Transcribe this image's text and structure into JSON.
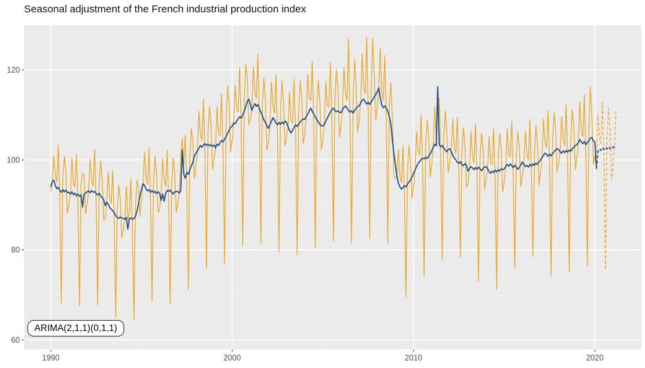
{
  "title": "Seasonal adjustment of the French industrial production index",
  "annotation": "ARIMA(2,1,1)(0,1,1)",
  "colors": {
    "raw_series": "#E9A422",
    "adjusted_series": "#1F4E89",
    "panel_background": "#EBEBEB",
    "grid_major": "#FFFFFF",
    "grid_minor": "#F5F5F5",
    "tick_label": "#4D4D4D",
    "tick_mark": "#333333",
    "title_text": "#111111"
  },
  "chart_data": {
    "type": "line",
    "title": "Seasonal adjustment of the French industrial production index",
    "xlabel": "",
    "ylabel": "",
    "grid": true,
    "legend_position": "none",
    "x_axis": {
      "ticks": [
        1990,
        2000,
        2010,
        2020
      ],
      "minor_ticks": [
        1995,
        2005,
        2015
      ],
      "range": [
        1988.5,
        2022.6
      ]
    },
    "y_axis": {
      "ticks": [
        60,
        80,
        100,
        120
      ],
      "minor_ticks": [
        70,
        90,
        110
      ],
      "range": [
        57.8,
        129.9
      ]
    },
    "frequency": 12,
    "series": [
      {
        "name": "raw_index",
        "style": "solid",
        "color": "#E9A422",
        "start": {
          "year": 1990,
          "month": 1
        },
        "values": [
          92.9,
          95.2,
          100.9,
          96.7,
          95.0,
          103.3,
          91.3,
          68.2,
          95.7,
          100.8,
          97.5,
          88.1,
          90.0,
          92.4,
          100.3,
          94.6,
          94.0,
          101.2,
          90.6,
          67.5,
          94.5,
          97.1,
          96.6,
          88.0,
          90.1,
          93.1,
          100.1,
          95.5,
          94.2,
          102.3,
          90.7,
          67.8,
          94.9,
          99.8,
          95.7,
          86.6,
          87.1,
          90.6,
          97.4,
          91.6,
          90.3,
          97.6,
          86.5,
          64.9,
          89.4,
          94.4,
          91.2,
          82.7,
          84.4,
          86.8,
          94.2,
          86.7,
          88.2,
          95.8,
          85.1,
          64.5,
          89.6,
          95.5,
          93.9,
          87.4,
          90.7,
          94.7,
          101.8,
          95.9,
          94.5,
          102.7,
          91.0,
          68.5,
          95.0,
          100.9,
          96.7,
          88.3,
          89.0,
          92.4,
          100.4,
          95.6,
          94.1,
          102.2,
          90.6,
          68.1,
          94.5,
          100.4,
          97.0,
          88.4,
          90.2,
          92.6,
          100.7,
          104.8,
          98.4,
          105.5,
          95.3,
          71.1,
          100.3,
          107.0,
          104.0,
          95.8,
          98.5,
          102.0,
          110.8,
          105.8,
          104.3,
          113.6,
          101.5,
          75.9,
          106.1,
          111.9,
          108.1,
          97.9,
          100.2,
          102.7,
          111.8,
          105.8,
          105.4,
          114.7,
          101.9,
          76.9,
          107.8,
          116.5,
          112.5,
          101.8,
          104.3,
          108.2,
          116.6,
          111.3,
          110.7,
          120.6,
          107.1,
          80.9,
          113.6,
          121.4,
          118.1,
          107.8,
          109.0,
          111.0,
          120.7,
          115.3,
          113.6,
          123.5,
          109.2,
          81.3,
          112.5,
          118.2,
          113.2,
          102.2,
          103.8,
          107.8,
          117.3,
          112.1,
          110.4,
          119.0,
          105.6,
          79.6,
          110.6,
          117.6,
          112.9,
          103.2,
          105.1,
          107.4,
          115.0,
          108.7,
          108.2,
          117.9,
          105.6,
          78.9,
          110.7,
          117.6,
          113.7,
          103.6,
          105.7,
          109.6,
          119.0,
          113.7,
          113.2,
          121.9,
          108.0,
          80.5,
          111.7,
          117.6,
          112.8,
          102.2,
          104.3,
          107.9,
          117.3,
          112.0,
          111.7,
          121.7,
          109.0,
          82.0,
          113.8,
          120.1,
          115.9,
          105.1,
          107.2,
          111.1,
          120.6,
          114.8,
          113.2,
          126.9,
          108.4,
          81.5,
          113.2,
          122.4,
          116.5,
          106.2,
          108.6,
          112.6,
          123.5,
          116.3,
          114.6,
          127.3,
          110.5,
          82.5,
          115.7,
          127.0,
          119.1,
          108.8,
          111.7,
          116.0,
          124.9,
          115.0,
          113.3,
          123.2,
          109.3,
          81.4,
          112.3,
          117.2,
          109.2,
          96.4,
          96.0,
          96.5,
          102.4,
          96.4,
          94.9,
          103.2,
          92.4,
          69.5,
          97.0,
          103.2,
          99.8,
          91.4,
          94.1,
          97.8,
          106.4,
          101.7,
          101.1,
          110.1,
          98.4,
          74.0,
          103.1,
          108.8,
          105.3,
          96.2,
          98.9,
          102.8,
          111.8,
          105.7,
          113.0,
          113.7,
          100.8,
          77.8,
          105.2,
          110.9,
          106.4,
          97.2,
          99.4,
          101.8,
          109.1,
          102.9,
          101.5,
          109.5,
          97.2,
          78.4,
          101.5,
          107.1,
          103.7,
          93.9,
          94.6,
          98.0,
          106.4,
          100.7,
          99.3,
          108.1,
          95.9,
          73.0,
          100.5,
          105.9,
          102.5,
          93.5,
          95.5,
          98.0,
          105.2,
          99.4,
          99.0,
          106.9,
          95.7,
          71.2,
          100.2,
          105.8,
          102.4,
          92.9,
          95.1,
          98.5,
          106.9,
          101.1,
          100.6,
          108.6,
          96.3,
          76.0,
          100.9,
          106.2,
          102.7,
          94.0,
          96.5,
          99.0,
          106.4,
          101.3,
          99.9,
          108.9,
          96.6,
          78.5,
          101.3,
          107.7,
          103.4,
          94.4,
          97.0,
          100.5,
          109.1,
          104.0,
          102.7,
          110.9,
          99.3,
          74.2,
          103.9,
          110.5,
          106.8,
          97.4,
          99.2,
          101.8,
          109.6,
          104.6,
          103.1,
          112.3,
          99.7,
          75.1,
          104.4,
          111.1,
          107.4,
          97.9,
          100.1,
          103.8,
          112.9,
          106.6,
          105.2,
          114.5,
          101.3,
          76.3,
          106.9,
          116.3,
          109.7,
          99.0,
          100.9,
          98.3
        ]
      },
      {
        "name": "seasonally_adjusted",
        "style": "solid",
        "color": "#1F4E89",
        "start": {
          "year": 1990,
          "month": 1
        },
        "values": [
          94.0,
          95.2,
          95.5,
          94.3,
          93.6,
          93.9,
          93.2,
          92.8,
          93.4,
          92.9,
          93.3,
          92.7,
          92.8,
          92.4,
          92.9,
          92.3,
          92.6,
          92.0,
          92.4,
          91.9,
          92.2,
          89.5,
          92.4,
          92.6,
          92.9,
          93.1,
          92.7,
          93.2,
          92.8,
          93.0,
          92.5,
          92.2,
          92.6,
          92.0,
          91.6,
          91.2,
          89.8,
          90.6,
          90.2,
          89.4,
          89.0,
          88.7,
          88.3,
          87.6,
          87.2,
          87.0,
          87.3,
          87.1,
          87.0,
          86.8,
          87.2,
          84.6,
          86.9,
          87.1,
          86.8,
          87.0,
          87.4,
          88.6,
          90.2,
          92.0,
          93.5,
          94.7,
          94.3,
          93.6,
          93.1,
          93.4,
          92.8,
          93.2,
          92.7,
          93.0,
          92.5,
          92.9,
          92.6,
          91.0,
          92.4,
          90.8,
          92.6,
          93.2,
          93.0,
          93.3,
          92.8,
          92.4,
          92.9,
          93.0,
          93.0,
          92.6,
          93.2,
          102.2,
          96.9,
          95.9,
          97.2,
          96.8,
          97.9,
          98.6,
          99.5,
          100.8,
          101.5,
          102.0,
          102.6,
          103.2,
          102.8,
          103.3,
          103.6,
          103.2,
          103.5,
          103.1,
          103.4,
          103.0,
          103.3,
          102.7,
          103.5,
          103.2,
          103.8,
          104.3,
          104.0,
          104.6,
          105.2,
          105.9,
          106.6,
          107.2,
          107.5,
          108.2,
          108.0,
          108.6,
          109.1,
          109.6,
          109.3,
          110.0,
          110.8,
          111.9,
          113.0,
          113.5,
          112.4,
          111.0,
          111.8,
          112.5,
          111.9,
          112.3,
          111.4,
          110.6,
          109.8,
          108.9,
          108.3,
          107.6,
          107.0,
          107.8,
          108.6,
          109.4,
          108.8,
          108.2,
          107.8,
          108.3,
          107.9,
          108.4,
          108.0,
          108.6,
          108.3,
          107.4,
          106.5,
          106.0,
          106.6,
          107.2,
          107.8,
          107.4,
          108.0,
          108.4,
          108.8,
          109.1,
          109.0,
          109.6,
          110.2,
          110.9,
          111.5,
          110.8,
          110.2,
          109.5,
          109.0,
          108.4,
          107.9,
          107.6,
          107.5,
          107.9,
          108.6,
          109.3,
          110.0,
          110.6,
          111.2,
          111.5,
          111.0,
          110.7,
          110.9,
          110.6,
          110.5,
          111.1,
          111.7,
          112.0,
          111.5,
          111.0,
          110.6,
          110.9,
          110.4,
          111.0,
          111.5,
          111.8,
          112.0,
          112.6,
          113.2,
          113.5,
          112.9,
          112.4,
          112.8,
          112.3,
          112.9,
          113.4,
          114.0,
          114.5,
          115.2,
          116.0,
          113.8,
          112.2,
          111.6,
          112.0,
          111.5,
          110.8,
          109.6,
          108.0,
          104.5,
          101.5,
          99.0,
          96.5,
          94.8,
          94.0,
          93.5,
          93.8,
          94.3,
          94.0,
          94.6,
          95.1,
          95.5,
          96.2,
          97.0,
          97.8,
          98.5,
          99.2,
          99.6,
          100.1,
          100.4,
          100.2,
          100.6,
          100.3,
          100.8,
          101.3,
          102.0,
          102.8,
          103.5,
          103.1,
          116.3,
          103.4,
          102.9,
          103.2,
          102.6,
          102.2,
          101.8,
          102.3,
          102.5,
          101.8,
          101.0,
          100.4,
          100.0,
          99.5,
          99.2,
          99.6,
          99.0,
          98.7,
          99.2,
          98.8,
          97.5,
          98.0,
          98.5,
          98.2,
          97.8,
          98.3,
          97.9,
          98.4,
          98.0,
          97.6,
          98.1,
          98.4,
          98.5,
          98.0,
          97.4,
          97.0,
          97.5,
          97.2,
          97.7,
          97.3,
          97.8,
          97.5,
          98.0,
          97.8,
          98.0,
          98.5,
          99.0,
          98.6,
          99.1,
          98.7,
          98.3,
          98.8,
          98.4,
          97.9,
          98.3,
          98.9,
          99.5,
          99.0,
          98.5,
          98.8,
          98.4,
          99.0,
          98.6,
          99.1,
          98.8,
          99.3,
          99.0,
          99.6,
          100.0,
          100.5,
          101.0,
          101.5,
          101.2,
          100.8,
          101.3,
          100.9,
          101.4,
          101.8,
          102.2,
          102.5,
          102.3,
          101.8,
          101.5,
          102.0,
          101.6,
          102.1,
          101.7,
          102.2,
          101.9,
          102.4,
          102.8,
          103.2,
          103.4,
          103.8,
          104.5,
          104.0,
          103.6,
          104.1,
          103.4,
          103.8,
          104.3,
          104.8,
          105.0,
          104.2,
          104.0,
          98.0
        ]
      },
      {
        "name": "raw_forecast",
        "style": "dashed",
        "color": "#E9A422",
        "start": {
          "year": 2020,
          "month": 3
        },
        "values": [
          110.2,
          104.9,
          103.7,
          112.8,
          100.5,
          75.6,
          105.1,
          111.5,
          107.1,
          95.5,
          98.5,
          103.0,
          111.2
        ]
      },
      {
        "name": "adjusted_forecast",
        "style": "dashed",
        "color": "#1F4E89",
        "start": {
          "year": 2020,
          "month": 3
        },
        "values": [
          101.8,
          102.4,
          102.1,
          102.7,
          102.3,
          102.8,
          102.4,
          102.9,
          102.5,
          103.0,
          102.7,
          103.1,
          102.9
        ]
      }
    ],
    "annotations": [
      {
        "text": "ARIMA(2,1,1)(0,1,1)",
        "position": "bottom-left"
      }
    ]
  }
}
